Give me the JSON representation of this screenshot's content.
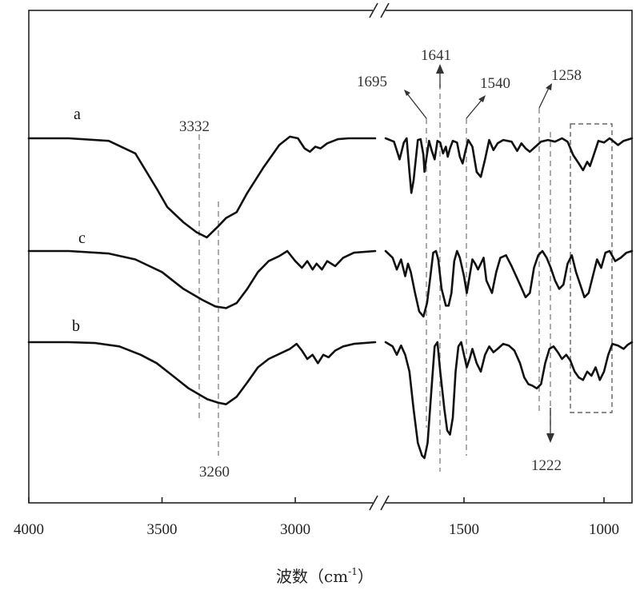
{
  "chart_data": {
    "type": "line",
    "xlabel": "波数（cm",
    "xlabel_sup": "-1",
    "xlabel_close": "）",
    "x_reversed": true,
    "axis_break": true,
    "x_segments": [
      {
        "xlim": [
          4000,
          2700
        ],
        "ticks": [
          4000,
          3500,
          3000
        ]
      },
      {
        "xlim": [
          1780,
          900
        ],
        "ticks": [
          1500,
          1000
        ]
      }
    ],
    "tick_labels": [
      "4000",
      "3500",
      "3000",
      "1500",
      "1000"
    ],
    "series": [
      {
        "name": "a",
        "left": [
          [
            4000,
            0
          ],
          [
            3850,
            0
          ],
          [
            3700,
            -3
          ],
          [
            3600,
            -18
          ],
          [
            3520,
            -60
          ],
          [
            3480,
            -82
          ],
          [
            3420,
            -100
          ],
          [
            3370,
            -112
          ],
          [
            3332,
            -118
          ],
          [
            3290,
            -105
          ],
          [
            3260,
            -95
          ],
          [
            3220,
            -88
          ],
          [
            3180,
            -65
          ],
          [
            3120,
            -35
          ],
          [
            3060,
            -8
          ],
          [
            3020,
            2
          ],
          [
            2990,
            0
          ],
          [
            2965,
            -12
          ],
          [
            2945,
            -16
          ],
          [
            2925,
            -10
          ],
          [
            2905,
            -12
          ],
          [
            2880,
            -6
          ],
          [
            2840,
            -1
          ],
          [
            2800,
            0
          ],
          [
            2700,
            0
          ]
        ],
        "right": [
          [
            1780,
            0
          ],
          [
            1750,
            -4
          ],
          [
            1730,
            -25
          ],
          [
            1715,
            -5
          ],
          [
            1705,
            0
          ],
          [
            1695,
            -40
          ],
          [
            1688,
            -65
          ],
          [
            1680,
            -50
          ],
          [
            1665,
            -2
          ],
          [
            1655,
            -1
          ],
          [
            1645,
            -20
          ],
          [
            1641,
            -40
          ],
          [
            1635,
            -25
          ],
          [
            1625,
            -3
          ],
          [
            1615,
            -15
          ],
          [
            1605,
            -25
          ],
          [
            1595,
            -3
          ],
          [
            1585,
            -5
          ],
          [
            1575,
            -18
          ],
          [
            1565,
            -10
          ],
          [
            1558,
            -22
          ],
          [
            1550,
            -12
          ],
          [
            1540,
            -3
          ],
          [
            1525,
            -5
          ],
          [
            1515,
            -22
          ],
          [
            1505,
            -30
          ],
          [
            1495,
            -15
          ],
          [
            1485,
            -2
          ],
          [
            1470,
            -10
          ],
          [
            1455,
            -40
          ],
          [
            1440,
            -46
          ],
          [
            1425,
            -25
          ],
          [
            1410,
            -2
          ],
          [
            1395,
            -14
          ],
          [
            1380,
            -6
          ],
          [
            1360,
            -2
          ],
          [
            1330,
            -4
          ],
          [
            1310,
            -15
          ],
          [
            1295,
            -6
          ],
          [
            1280,
            -12
          ],
          [
            1265,
            -16
          ],
          [
            1245,
            -10
          ],
          [
            1225,
            -4
          ],
          [
            1200,
            -2
          ],
          [
            1175,
            -4
          ],
          [
            1150,
            0
          ],
          [
            1130,
            -4
          ],
          [
            1110,
            -20
          ],
          [
            1090,
            -30
          ],
          [
            1075,
            -38
          ],
          [
            1060,
            -28
          ],
          [
            1050,
            -33
          ],
          [
            1035,
            -18
          ],
          [
            1020,
            -3
          ],
          [
            1000,
            -5
          ],
          [
            980,
            0
          ],
          [
            950,
            -8
          ],
          [
            930,
            -3
          ],
          [
            900,
            0
          ]
        ]
      },
      {
        "name": "c",
        "left": [
          [
            4000,
            0
          ],
          [
            3850,
            0
          ],
          [
            3700,
            -3
          ],
          [
            3600,
            -10
          ],
          [
            3500,
            -25
          ],
          [
            3420,
            -45
          ],
          [
            3350,
            -58
          ],
          [
            3300,
            -66
          ],
          [
            3260,
            -68
          ],
          [
            3220,
            -62
          ],
          [
            3180,
            -45
          ],
          [
            3140,
            -25
          ],
          [
            3100,
            -12
          ],
          [
            3060,
            -6
          ],
          [
            3030,
            0
          ],
          [
            3000,
            -12
          ],
          [
            2975,
            -20
          ],
          [
            2955,
            -12
          ],
          [
            2935,
            -22
          ],
          [
            2920,
            -15
          ],
          [
            2900,
            -22
          ],
          [
            2880,
            -12
          ],
          [
            2850,
            -18
          ],
          [
            2820,
            -8
          ],
          [
            2780,
            -2
          ],
          [
            2700,
            0
          ]
        ],
        "right": [
          [
            1780,
            0
          ],
          [
            1755,
            -8
          ],
          [
            1740,
            -22
          ],
          [
            1725,
            -10
          ],
          [
            1710,
            -30
          ],
          [
            1700,
            -15
          ],
          [
            1690,
            -25
          ],
          [
            1675,
            -50
          ],
          [
            1660,
            -72
          ],
          [
            1645,
            -78
          ],
          [
            1632,
            -62
          ],
          [
            1620,
            -30
          ],
          [
            1610,
            -2
          ],
          [
            1600,
            0
          ],
          [
            1592,
            -10
          ],
          [
            1580,
            -45
          ],
          [
            1565,
            -65
          ],
          [
            1555,
            -65
          ],
          [
            1545,
            -50
          ],
          [
            1535,
            -12
          ],
          [
            1525,
            0
          ],
          [
            1515,
            -8
          ],
          [
            1500,
            -30
          ],
          [
            1490,
            -50
          ],
          [
            1480,
            -30
          ],
          [
            1470,
            -10
          ],
          [
            1460,
            -15
          ],
          [
            1450,
            -22
          ],
          [
            1440,
            -15
          ],
          [
            1430,
            -8
          ],
          [
            1420,
            -35
          ],
          [
            1400,
            -50
          ],
          [
            1385,
            -25
          ],
          [
            1370,
            -8
          ],
          [
            1350,
            -5
          ],
          [
            1330,
            -18
          ],
          [
            1300,
            -40
          ],
          [
            1280,
            -55
          ],
          [
            1265,
            -50
          ],
          [
            1250,
            -20
          ],
          [
            1235,
            -5
          ],
          [
            1220,
            0
          ],
          [
            1205,
            -8
          ],
          [
            1190,
            -20
          ],
          [
            1175,
            -35
          ],
          [
            1160,
            -45
          ],
          [
            1145,
            -40
          ],
          [
            1130,
            -15
          ],
          [
            1115,
            -5
          ],
          [
            1100,
            -25
          ],
          [
            1085,
            -40
          ],
          [
            1070,
            -55
          ],
          [
            1055,
            -50
          ],
          [
            1040,
            -30
          ],
          [
            1025,
            -10
          ],
          [
            1010,
            -20
          ],
          [
            995,
            -2
          ],
          [
            980,
            0
          ],
          [
            960,
            -12
          ],
          [
            940,
            -8
          ],
          [
            920,
            -2
          ],
          [
            900,
            0
          ]
        ]
      },
      {
        "name": "b",
        "left": [
          [
            4000,
            0
          ],
          [
            3850,
            0
          ],
          [
            3750,
            -1
          ],
          [
            3660,
            -5
          ],
          [
            3580,
            -15
          ],
          [
            3520,
            -25
          ],
          [
            3460,
            -40
          ],
          [
            3400,
            -55
          ],
          [
            3330,
            -68
          ],
          [
            3290,
            -72
          ],
          [
            3260,
            -74
          ],
          [
            3220,
            -65
          ],
          [
            3180,
            -48
          ],
          [
            3140,
            -30
          ],
          [
            3100,
            -20
          ],
          [
            3060,
            -14
          ],
          [
            3020,
            -8
          ],
          [
            2995,
            -2
          ],
          [
            2975,
            -10
          ],
          [
            2955,
            -20
          ],
          [
            2935,
            -15
          ],
          [
            2915,
            -25
          ],
          [
            2895,
            -15
          ],
          [
            2875,
            -18
          ],
          [
            2850,
            -10
          ],
          [
            2820,
            -5
          ],
          [
            2780,
            -2
          ],
          [
            2700,
            0
          ]
        ],
        "right": [
          [
            1780,
            0
          ],
          [
            1755,
            -5
          ],
          [
            1740,
            -15
          ],
          [
            1725,
            -4
          ],
          [
            1710,
            -15
          ],
          [
            1695,
            -35
          ],
          [
            1680,
            -80
          ],
          [
            1665,
            -120
          ],
          [
            1650,
            -135
          ],
          [
            1641,
            -138
          ],
          [
            1630,
            -120
          ],
          [
            1615,
            -50
          ],
          [
            1605,
            -5
          ],
          [
            1595,
            0
          ],
          [
            1585,
            -35
          ],
          [
            1570,
            -80
          ],
          [
            1560,
            -105
          ],
          [
            1550,
            -110
          ],
          [
            1540,
            -90
          ],
          [
            1530,
            -35
          ],
          [
            1520,
            -5
          ],
          [
            1510,
            0
          ],
          [
            1500,
            -15
          ],
          [
            1490,
            -30
          ],
          [
            1480,
            -20
          ],
          [
            1470,
            -8
          ],
          [
            1455,
            -25
          ],
          [
            1440,
            -35
          ],
          [
            1425,
            -15
          ],
          [
            1410,
            -5
          ],
          [
            1395,
            -12
          ],
          [
            1380,
            -8
          ],
          [
            1360,
            -2
          ],
          [
            1340,
            -4
          ],
          [
            1320,
            -10
          ],
          [
            1300,
            -25
          ],
          [
            1285,
            -42
          ],
          [
            1270,
            -50
          ],
          [
            1255,
            -52
          ],
          [
            1240,
            -55
          ],
          [
            1225,
            -50
          ],
          [
            1210,
            -25
          ],
          [
            1195,
            -8
          ],
          [
            1180,
            -5
          ],
          [
            1165,
            -12
          ],
          [
            1150,
            -20
          ],
          [
            1135,
            -15
          ],
          [
            1120,
            -22
          ],
          [
            1105,
            -35
          ],
          [
            1090,
            -42
          ],
          [
            1075,
            -45
          ],
          [
            1060,
            -35
          ],
          [
            1045,
            -40
          ],
          [
            1030,
            -30
          ],
          [
            1015,
            -45
          ],
          [
            1000,
            -35
          ],
          [
            985,
            -15
          ],
          [
            970,
            -2
          ],
          [
            950,
            -4
          ],
          [
            930,
            -8
          ],
          [
            915,
            -3
          ],
          [
            900,
            0
          ]
        ]
      }
    ],
    "annotations": [
      "3332",
      "3260",
      "1695",
      "1641",
      "1540",
      "1258",
      "1222"
    ],
    "highlight_box": {
      "x_range": [
        1130,
        980
      ]
    }
  }
}
